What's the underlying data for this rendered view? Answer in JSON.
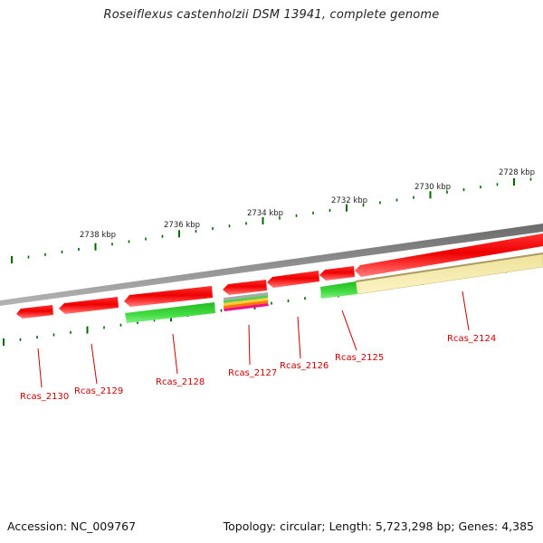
{
  "title": "Roseiflexus castenholzii DSM 13941, complete genome",
  "scale": {
    "major_tick_labels": [
      "2738 kbp",
      "2736 kbp",
      "2734 kbp",
      "2732 kbp",
      "2730 kbp",
      "2728 kbp"
    ]
  },
  "genes": [
    {
      "id": "Rcas_2130",
      "strand": "forward",
      "track": "reverse-strand",
      "color": "#ff2020"
    },
    {
      "id": "Rcas_2129",
      "strand": "forward",
      "track": "reverse-strand",
      "color": "#ff2020"
    },
    {
      "id": "Rcas_2128",
      "strand": "forward",
      "track": "reverse-strand",
      "color": "#ff2020"
    },
    {
      "id": "Rcas_2127",
      "strand": "forward",
      "track": "reverse-strand",
      "color": "#ff2020"
    },
    {
      "id": "Rcas_2126",
      "strand": "forward",
      "track": "reverse-strand",
      "color": "#ff2020"
    },
    {
      "id": "Rcas_2125",
      "strand": "forward",
      "track": "reverse-strand",
      "color": "#ff2020"
    },
    {
      "id": "Rcas_2124",
      "strand": "forward",
      "track": "reverse-strand",
      "color": "#ff2020"
    }
  ],
  "colors": {
    "cds": "#ff1a1a",
    "cds_highlight": "#ff6a6a",
    "backbone": "#8a8a8a",
    "green_feature": "#33cc33",
    "yellow_feature": "#f5eaa0",
    "tick": "#006600",
    "label": "#cc0000"
  },
  "footer": {
    "accession": "Accession: NC_009767",
    "summary": "Topology: circular; Length: 5,723,298 bp; Genes: 4,385"
  }
}
